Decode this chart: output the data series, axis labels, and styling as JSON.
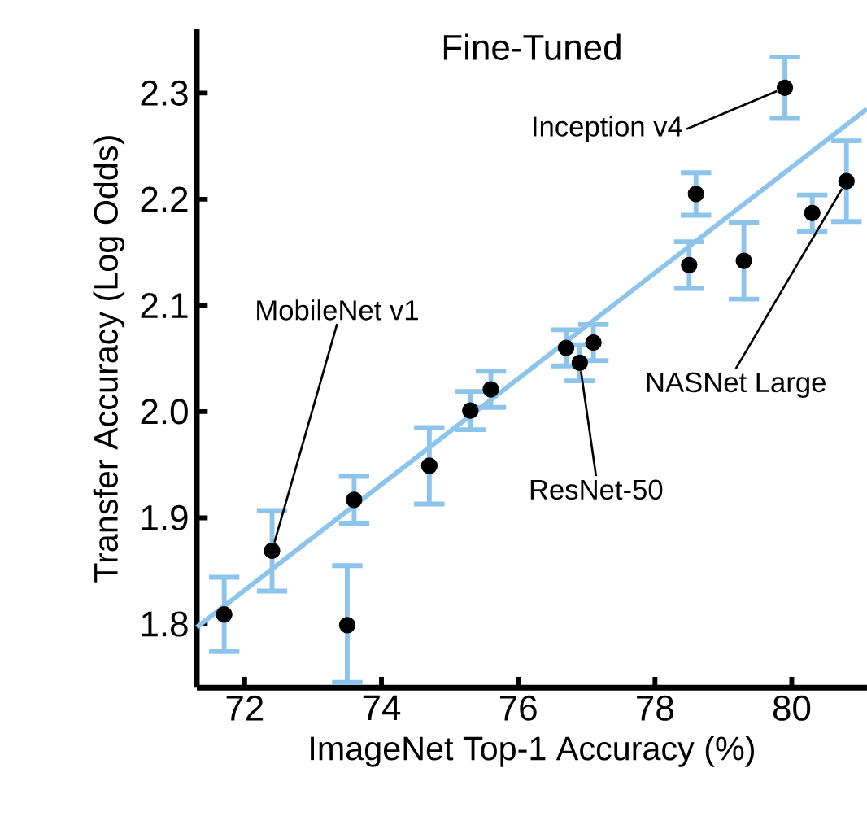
{
  "chart_data": {
    "type": "scatter",
    "title": "Fine-Tuned",
    "xlabel": "ImageNet Top-1 Accuracy (%)",
    "ylabel": "Transfer Accuracy (Log Odds)",
    "xlim": [
      71.3,
      81.1
    ],
    "xticks": [
      72,
      74,
      76,
      78,
      80
    ],
    "ylim": [
      1.74,
      2.36
    ],
    "yticks": [
      {
        "value": 1.8,
        "label": "1.8"
      },
      {
        "value": 1.9,
        "label": "1.9"
      },
      {
        "value": 2.0,
        "label": "2.0"
      },
      {
        "value": 2.1,
        "label": "2.1"
      },
      {
        "value": 2.2,
        "label": "2.2"
      },
      {
        "value": 2.3,
        "label": "2.3"
      }
    ],
    "grid": false,
    "marker": "circle",
    "series": [
      {
        "type": "line",
        "color": "#8cc4ec",
        "x": [
          71.3,
          81.1
        ],
        "values": [
          1.797,
          2.285
        ],
        "marker": "none"
      },
      {
        "color": "#000000",
        "x": [
          71.7,
          72.4,
          73.6,
          73.5,
          74.7,
          75.3,
          75.6,
          76.7,
          76.9,
          77.1,
          78.5,
          78.6,
          79.3,
          79.9,
          80.3,
          80.8
        ],
        "values": [
          1.809,
          1.869,
          1.917,
          1.799,
          1.949,
          2.001,
          2.021,
          2.06,
          2.046,
          2.065,
          2.138,
          2.205,
          2.142,
          2.305,
          2.187,
          2.217
        ],
        "errors": [
          0.035,
          0.038,
          0.022,
          [
            1.745,
            1.855
          ],
          0.036,
          0.018,
          0.017,
          0.017,
          0.017,
          0.017,
          0.022,
          0.02,
          0.036,
          0.029,
          0.017,
          0.038
        ]
      }
    ],
    "annotations": [
      {
        "text": "MobileNet v1",
        "x": 72.4,
        "y": 1.869
      },
      {
        "text": "ResNet-50",
        "x": 76.9,
        "y": 2.046
      },
      {
        "text": "Inception v4",
        "x": 79.9,
        "y": 2.305
      },
      {
        "text": "NASNet Large",
        "x": 80.8,
        "y": 2.217
      }
    ]
  }
}
